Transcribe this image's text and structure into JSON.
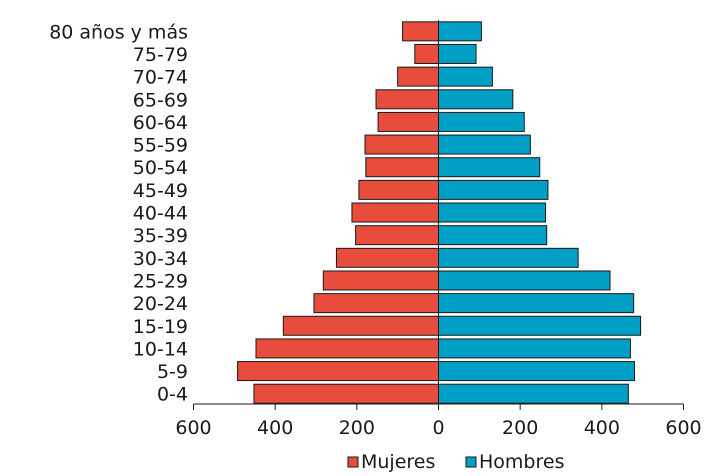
{
  "chart_data": {
    "type": "bar",
    "orientation": "horizontal-diverging",
    "categories": [
      "80 años y más",
      "75-79",
      "70-74",
      "65-69",
      "60-64",
      "55-59",
      "50-54",
      "45-49",
      "40-44",
      "35-39",
      "30-34",
      "25-29",
      "20-24",
      "15-19",
      "10-14",
      "5-9",
      "0-4"
    ],
    "series": [
      {
        "name": "Mujeres",
        "color": "#e74c3c",
        "values": [
          88,
          58,
          100,
          153,
          148,
          180,
          178,
          195,
          212,
          203,
          250,
          282,
          305,
          380,
          447,
          492,
          452
        ]
      },
      {
        "name": "Hombres",
        "color": "#00a0c6",
        "values": [
          105,
          92,
          132,
          182,
          210,
          225,
          248,
          268,
          262,
          265,
          342,
          420,
          478,
          495,
          470,
          480,
          465
        ]
      }
    ],
    "xticks": [
      "600",
      "400",
      "200",
      "0",
      "200",
      "400",
      "600"
    ],
    "xlim": [
      -600,
      600
    ],
    "legend": "bottom-center",
    "grid": false
  }
}
